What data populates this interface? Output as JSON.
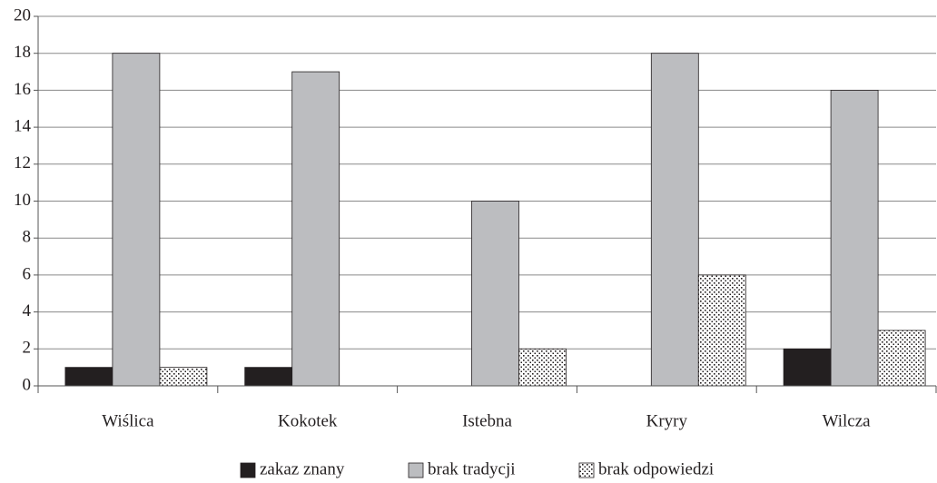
{
  "chart_data": {
    "type": "bar",
    "categories": [
      "Wiślica",
      "Kokotek",
      "Istebna",
      "Kryry",
      "Wilcza"
    ],
    "series": [
      {
        "name": "zakaz znany",
        "color": "#231f20",
        "values": [
          1,
          1,
          0,
          0,
          2
        ]
      },
      {
        "name": "brak tradycji",
        "color": "#bcbdc0",
        "values": [
          18,
          17,
          10,
          18,
          16
        ]
      },
      {
        "name": "brak odpowiedzi",
        "color": "#ffffff",
        "pattern": "dots",
        "values": [
          1,
          0,
          2,
          6,
          3
        ]
      }
    ],
    "ylim": [
      0,
      20
    ],
    "yticks": [
      0,
      2,
      4,
      6,
      8,
      10,
      12,
      14,
      16,
      18,
      20
    ],
    "grid": true,
    "legend": "bottom"
  }
}
